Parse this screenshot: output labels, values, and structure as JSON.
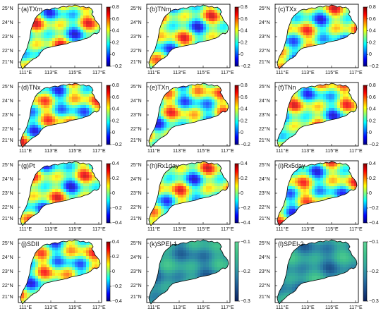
{
  "lat_labels": [
    "25°N",
    "24°N",
    "23°N",
    "22°N",
    "21°N"
  ],
  "lon_labels": [
    "111°E",
    "113°E",
    "115°E",
    "117°E"
  ],
  "panels": [
    {
      "id": "a",
      "title": "(a)TXm",
      "cmap": "jet",
      "colorbar_ticks": [
        "0.8",
        "0.6",
        "0.4",
        "0.2",
        "0",
        "−0.2"
      ]
    },
    {
      "id": "b",
      "title": "(b)TNm",
      "cmap": "jet",
      "colorbar_ticks": [
        "0.8",
        "0.6",
        "0.4",
        "0.2",
        "0",
        "−0.2"
      ]
    },
    {
      "id": "c",
      "title": "(c)TXx",
      "cmap": "jet",
      "colorbar_ticks": [
        "0.8",
        "0.6",
        "0.4",
        "0.2",
        "0",
        "−0.2"
      ]
    },
    {
      "id": "d",
      "title": "(d)TNx",
      "cmap": "jet",
      "colorbar_ticks": [
        "0.8",
        "0.6",
        "0.4",
        "0.2",
        "0",
        "−0.2"
      ]
    },
    {
      "id": "e",
      "title": "(e)TXn",
      "cmap": "jet",
      "colorbar_ticks": [
        "0.8",
        "0.6",
        "0.4",
        "0.2",
        "0",
        "−0.2"
      ]
    },
    {
      "id": "f",
      "title": "(f)TNn",
      "cmap": "jet",
      "colorbar_ticks": [
        "0.8",
        "0.6",
        "0.4",
        "0.2",
        "0",
        "−0.2"
      ]
    },
    {
      "id": "g",
      "title": "(g)Pt",
      "cmap": "jet",
      "colorbar_ticks": [
        "0.4",
        "0.2",
        "0",
        "−0.2",
        "−0.4"
      ]
    },
    {
      "id": "h",
      "title": "(h)Rx1day",
      "cmap": "jet",
      "colorbar_ticks": [
        "0.4",
        "0.2",
        "0",
        "−0.2",
        "−0.4"
      ]
    },
    {
      "id": "i",
      "title": "(i)Rx5day",
      "cmap": "jet",
      "colorbar_ticks": [
        "0.4",
        "0.2",
        "0",
        "−0.2",
        "−0.4"
      ]
    },
    {
      "id": "j",
      "title": "(j)SDII",
      "cmap": "jet",
      "colorbar_ticks": [
        "0.4",
        "0.2",
        "0",
        "−0.2",
        "−0.4"
      ]
    },
    {
      "id": "k",
      "title": "(k)SPEI-1",
      "cmap": "green-blue",
      "colorbar_ticks": [
        "−0.1",
        "−0.2",
        "−0.3"
      ]
    },
    {
      "id": "l",
      "title": "(l)SPEI-2",
      "cmap": "green-blue",
      "colorbar_ticks": [
        "−0.1",
        "−0.2",
        "−0.3"
      ]
    }
  ],
  "colors": {
    "jet": [
      "#000080",
      "#0000ff",
      "#0080ff",
      "#00ffff",
      "#80ff80",
      "#ffff00",
      "#ff8000",
      "#ff0000",
      "#800000"
    ],
    "green-blue": [
      "#0b1f5a",
      "#1a4c8a",
      "#2a7ba6",
      "#34a79f",
      "#3fc38b",
      "#5fd496"
    ]
  }
}
